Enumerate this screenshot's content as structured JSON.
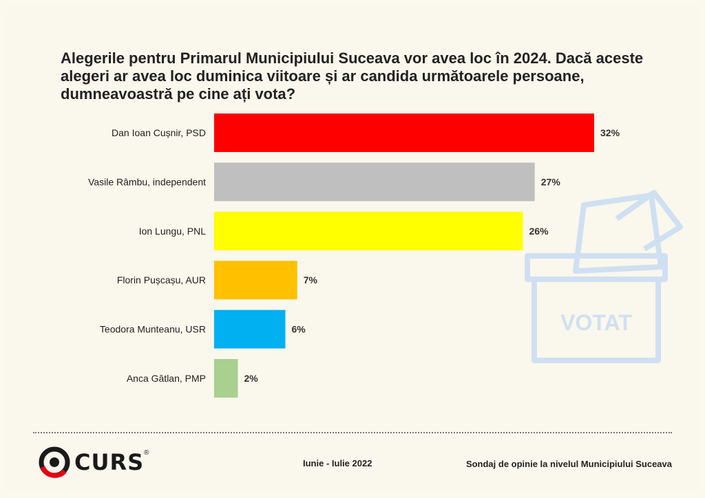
{
  "title": "Alegerile pentru Primarul Municipiului Suceava vor avea loc în 2024. Dacă aceste alegeri ar avea loc duminica viitoare și ar candida următoarele persoane, dumneavoastră pe cine ați vota?",
  "chart_data": {
    "type": "bar",
    "orientation": "horizontal",
    "categories": [
      "Dan Ioan Cușnir, PSD",
      "Vasile Râmbu, independent",
      "Ion Lungu, PNL",
      "Florin Pușcașu, AUR",
      "Teodora Munteanu, USR",
      "Anca Gâtlan, PMP"
    ],
    "values": [
      32,
      27,
      26,
      7,
      6,
      2
    ],
    "value_labels": [
      "32%",
      "27%",
      "26%",
      "7%",
      "6%",
      "2%"
    ],
    "colors": [
      "#ff0000",
      "#bfbfbf",
      "#ffff00",
      "#ffc000",
      "#00b0f0",
      "#a9d08e"
    ],
    "xlim": [
      0,
      32
    ],
    "grid": false,
    "legend": "none"
  },
  "watermark": {
    "text": "VOTAT",
    "icon": "ballot-box-icon",
    "color": "#cfe0f2"
  },
  "footer": {
    "logo_text": "CURS",
    "logo_mark": "®",
    "period": "Iunie - Iulie 2022",
    "source": "Sondaj de opinie la nivelul Municipiului Suceava"
  }
}
